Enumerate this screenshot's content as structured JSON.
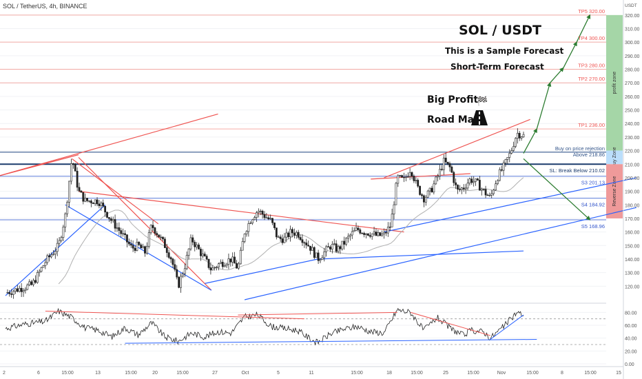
{
  "header": {
    "symbol_title": "SOL / TetherUS, 4h, BINANCE",
    "currency": "USDT"
  },
  "annotations": {
    "title": "SOL / USDT",
    "subtitle1": "This is a Sample Forecast",
    "subtitle2": "Short-Term Forecast",
    "big_profit": "Big Profit",
    "road_map": "Road Map",
    "flag_icon": "checkered-flag-icon",
    "road_icon": "road-icon"
  },
  "colors": {
    "up": "#26a69a",
    "down": "#ef5350",
    "candle": "#222222",
    "trend_red": "#ef5350",
    "trend_blue": "#2962ff",
    "arrow_green": "#2e7d32",
    "profit_zone": "#a5d6a7",
    "buy_zone": "#bbdefb",
    "reverse_zone": "#ef9a9a",
    "level_red": "#f28b82",
    "level_blue": "#5c7bd9",
    "ma": "#b0b0b0",
    "rsi": "#222222"
  },
  "chart_data": [
    {
      "type": "candlestick",
      "title": "SOL / TetherUS, 4h, BINANCE",
      "ylabel": "USDT",
      "ylim": [
        110,
        325
      ],
      "y_ticks": [
        120,
        130,
        140,
        150,
        160,
        170,
        180,
        190,
        200,
        210,
        220,
        230,
        240,
        250,
        260,
        270,
        280,
        290,
        300,
        310,
        320
      ],
      "x_ticks": [
        "2",
        "6",
        "15:00",
        "13",
        "15:00",
        "20",
        "15:00",
        "27",
        "Oct",
        "5",
        "11",
        "15:00",
        "18",
        "15:00",
        "25",
        "15:00",
        "Nov",
        "15:00",
        "8",
        "15:00",
        "15"
      ],
      "price_path": [
        [
          0,
          115
        ],
        [
          4,
          121
        ],
        [
          6,
          138
        ],
        [
          8,
          150
        ],
        [
          9,
          172
        ],
        [
          10,
          215
        ],
        [
          11,
          190
        ],
        [
          12,
          183
        ],
        [
          14,
          183
        ],
        [
          16,
          168
        ],
        [
          17,
          162
        ],
        [
          18,
          155
        ],
        [
          19,
          148
        ],
        [
          20,
          150
        ],
        [
          21,
          145
        ],
        [
          22,
          165
        ],
        [
          23,
          158
        ],
        [
          24,
          150
        ],
        [
          25,
          140
        ],
        [
          26,
          120
        ],
        [
          27,
          135
        ],
        [
          28,
          155
        ],
        [
          30,
          140
        ],
        [
          31,
          132
        ],
        [
          32,
          136
        ],
        [
          33,
          138
        ],
        [
          34,
          140
        ],
        [
          35,
          133
        ],
        [
          36,
          160
        ],
        [
          37,
          170
        ],
        [
          38,
          176
        ],
        [
          39,
          172
        ],
        [
          40,
          168
        ],
        [
          41,
          155
        ],
        [
          42,
          155
        ],
        [
          43,
          160
        ],
        [
          44,
          159
        ],
        [
          46,
          148
        ],
        [
          47,
          140
        ],
        [
          48,
          145
        ],
        [
          49,
          150
        ],
        [
          50,
          147
        ],
        [
          51,
          152
        ],
        [
          52,
          158
        ],
        [
          53,
          162
        ],
        [
          54,
          160
        ],
        [
          55,
          159
        ],
        [
          56,
          157
        ],
        [
          57,
          158
        ],
        [
          58,
          165
        ],
        [
          59,
          200
        ],
        [
          60,
          198
        ],
        [
          61,
          207
        ],
        [
          62,
          193
        ],
        [
          63,
          185
        ],
        [
          64,
          190
        ],
        [
          65,
          200
        ],
        [
          66,
          212
        ],
        [
          67,
          207
        ],
        [
          68,
          190
        ],
        [
          69,
          193
        ],
        [
          70,
          199
        ],
        [
          71,
          196
        ],
        [
          72,
          190
        ],
        [
          73,
          185
        ],
        [
          74,
          200
        ],
        [
          75,
          208
        ],
        [
          76,
          218
        ],
        [
          77,
          233
        ],
        [
          78,
          231
        ]
      ],
      "levels": [
        {
          "label": "TP5 320.00",
          "value": 320.0,
          "kind": "target"
        },
        {
          "label": "TP4 300.00",
          "value": 300.0,
          "kind": "target"
        },
        {
          "label": "TP3 280.00",
          "value": 280.0,
          "kind": "target"
        },
        {
          "label": "TP2 270.00",
          "value": 270.0,
          "kind": "target"
        },
        {
          "label": "TP1 236.00",
          "value": 236.0,
          "kind": "target"
        },
        {
          "label": "Buy on price rejection",
          "value": 219.86,
          "kind": "entry"
        },
        {
          "label": "Above 218.86",
          "value": 218.86,
          "kind": "entry"
        },
        {
          "label": "SL: Break Below 210.02",
          "value": 210.02,
          "kind": "stop"
        },
        {
          "label": "S3 201.13",
          "value": 201.13,
          "kind": "support"
        },
        {
          "label": "S4 184.92",
          "value": 184.92,
          "kind": "support"
        },
        {
          "label": "S5 168.96",
          "value": 168.96,
          "kind": "support"
        }
      ],
      "zones": [
        {
          "label": "profit zone",
          "from": 220,
          "to": 320
        },
        {
          "label": "Buy Zone",
          "from": 210,
          "to": 220
        },
        {
          "label": "Reverse Zone",
          "from": 170,
          "to": 210
        }
      ]
    },
    {
      "type": "line",
      "title": "",
      "ylim": [
        0,
        90
      ],
      "y_ticks": [
        0.0,
        20.0,
        40.0,
        60.0,
        80.0
      ],
      "series": [
        {
          "values_path": [
            [
              0,
              55
            ],
            [
              3,
              62
            ],
            [
              6,
              66
            ],
            [
              8,
              82
            ],
            [
              10,
              72
            ],
            [
              12,
              56
            ],
            [
              14,
              52
            ],
            [
              16,
              42
            ],
            [
              18,
              56
            ],
            [
              20,
              45
            ],
            [
              22,
              64
            ],
            [
              24,
              42
            ],
            [
              26,
              35
            ],
            [
              28,
              48
            ],
            [
              30,
              42
            ],
            [
              32,
              50
            ],
            [
              34,
              48
            ],
            [
              36,
              73
            ],
            [
              38,
              76
            ],
            [
              40,
              58
            ],
            [
              42,
              55
            ],
            [
              44,
              52
            ],
            [
              46,
              38
            ],
            [
              47,
              33
            ],
            [
              49,
              47
            ],
            [
              51,
              54
            ],
            [
              53,
              58
            ],
            [
              55,
              50
            ],
            [
              57,
              48
            ],
            [
              59,
              84
            ],
            [
              61,
              80
            ],
            [
              63,
              52
            ],
            [
              65,
              72
            ],
            [
              67,
              55
            ],
            [
              69,
              44
            ],
            [
              70,
              52
            ],
            [
              72,
              50
            ],
            [
              73,
              40
            ],
            [
              75,
              58
            ],
            [
              77,
              80
            ],
            [
              78,
              76
            ]
          ]
        }
      ]
    }
  ]
}
